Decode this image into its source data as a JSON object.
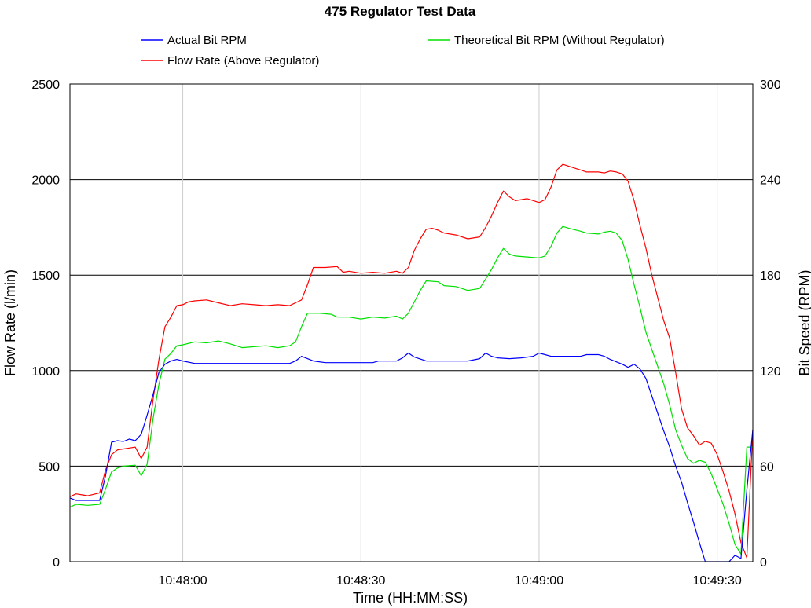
{
  "chart_data": {
    "type": "line",
    "title": "475 Regulator Test Data",
    "xlabel": "Time (HH:MM:SS)",
    "ylabel_left": "Flow Rate (l/min)",
    "ylabel_right": "Bit Speed (RPM)",
    "x_unit": "HH:MM:SS",
    "xlim": [
      "10:47:41",
      "10:49:36"
    ],
    "x_ticks": [
      "10:48:00",
      "10:48:30",
      "10:49:00",
      "10:49:30"
    ],
    "ylim_left": [
      0,
      2500
    ],
    "yticks_left": [
      0,
      500,
      1000,
      1500,
      2000,
      2500
    ],
    "ylim_right": [
      0,
      300
    ],
    "yticks_right": [
      0,
      60,
      120,
      180,
      240,
      300
    ],
    "grid": {
      "horizontal": true,
      "vertical": true
    },
    "legend": {
      "placement": "top",
      "entries": [
        {
          "name": "Actual Bit RPM",
          "color": "#0000ff"
        },
        {
          "name": "Theoretical Bit RPM (Without Regulator)",
          "color": "#00e000"
        },
        {
          "name": "Flow Rate (Above Regulator)",
          "color": "#ff0000"
        }
      ]
    },
    "series": [
      {
        "name": "Flow Rate (Above Regulator)",
        "axis": "left",
        "color": "#ff0000",
        "points": [
          [
            "10:47:41",
            340
          ],
          [
            "10:47:42",
            355
          ],
          [
            "10:47:43",
            350
          ],
          [
            "10:47:44",
            345
          ],
          [
            "10:47:46",
            360
          ],
          [
            "10:47:47",
            480
          ],
          [
            "10:47:48",
            560
          ],
          [
            "10:47:49",
            585
          ],
          [
            "10:47:50",
            590
          ],
          [
            "10:47:51",
            595
          ],
          [
            "10:47:52",
            600
          ],
          [
            "10:47:53",
            540
          ],
          [
            "10:47:54",
            600
          ],
          [
            "10:47:55",
            850
          ],
          [
            "10:47:56",
            1060
          ],
          [
            "10:47:57",
            1230
          ],
          [
            "10:47:58",
            1280
          ],
          [
            "10:47:59",
            1340
          ],
          [
            "10:48:00",
            1345
          ],
          [
            "10:48:01",
            1360
          ],
          [
            "10:48:02",
            1365
          ],
          [
            "10:48:04",
            1370
          ],
          [
            "10:48:06",
            1355
          ],
          [
            "10:48:08",
            1340
          ],
          [
            "10:48:10",
            1350
          ],
          [
            "10:48:12",
            1345
          ],
          [
            "10:48:14",
            1340
          ],
          [
            "10:48:16",
            1345
          ],
          [
            "10:48:18",
            1340
          ],
          [
            "10:48:20",
            1370
          ],
          [
            "10:48:21",
            1450
          ],
          [
            "10:48:22",
            1540
          ],
          [
            "10:48:24",
            1540
          ],
          [
            "10:48:26",
            1545
          ],
          [
            "10:48:27",
            1515
          ],
          [
            "10:48:28",
            1520
          ],
          [
            "10:48:30",
            1510
          ],
          [
            "10:48:32",
            1515
          ],
          [
            "10:48:34",
            1510
          ],
          [
            "10:48:36",
            1520
          ],
          [
            "10:48:37",
            1510
          ],
          [
            "10:48:38",
            1540
          ],
          [
            "10:48:39",
            1630
          ],
          [
            "10:48:40",
            1690
          ],
          [
            "10:48:41",
            1740
          ],
          [
            "10:48:42",
            1745
          ],
          [
            "10:48:43",
            1735
          ],
          [
            "10:48:44",
            1720
          ],
          [
            "10:48:46",
            1710
          ],
          [
            "10:48:48",
            1690
          ],
          [
            "10:48:50",
            1700
          ],
          [
            "10:48:51",
            1750
          ],
          [
            "10:48:52",
            1810
          ],
          [
            "10:48:53",
            1880
          ],
          [
            "10:48:54",
            1940
          ],
          [
            "10:48:55",
            1910
          ],
          [
            "10:48:56",
            1890
          ],
          [
            "10:48:58",
            1900
          ],
          [
            "10:49:00",
            1880
          ],
          [
            "10:49:01",
            1895
          ],
          [
            "10:49:02",
            1960
          ],
          [
            "10:49:03",
            2050
          ],
          [
            "10:49:04",
            2080
          ],
          [
            "10:49:05",
            2070
          ],
          [
            "10:49:07",
            2050
          ],
          [
            "10:49:08",
            2040
          ],
          [
            "10:49:10",
            2040
          ],
          [
            "10:49:11",
            2035
          ],
          [
            "10:49:12",
            2045
          ],
          [
            "10:49:13",
            2040
          ],
          [
            "10:49:14",
            2030
          ],
          [
            "10:49:15",
            1990
          ],
          [
            "10:49:16",
            1890
          ],
          [
            "10:49:17",
            1760
          ],
          [
            "10:49:18",
            1640
          ],
          [
            "10:49:19",
            1500
          ],
          [
            "10:49:20",
            1380
          ],
          [
            "10:49:21",
            1260
          ],
          [
            "10:49:22",
            1170
          ],
          [
            "10:49:23",
            990
          ],
          [
            "10:49:24",
            800
          ],
          [
            "10:49:25",
            700
          ],
          [
            "10:49:26",
            660
          ],
          [
            "10:49:27",
            610
          ],
          [
            "10:49:28",
            630
          ],
          [
            "10:49:29",
            620
          ],
          [
            "10:49:30",
            560
          ],
          [
            "10:49:31",
            470
          ],
          [
            "10:49:32",
            370
          ],
          [
            "10:49:33",
            250
          ],
          [
            "10:49:34",
            100
          ],
          [
            "10:49:35",
            20
          ],
          [
            "10:49:36",
            690
          ]
        ]
      },
      {
        "name": "Theoretical Bit RPM (Without Regulator)",
        "axis": "left",
        "color": "#00e000",
        "points": [
          [
            "10:47:41",
            285
          ],
          [
            "10:47:42",
            300
          ],
          [
            "10:47:44",
            295
          ],
          [
            "10:47:46",
            300
          ],
          [
            "10:47:47",
            380
          ],
          [
            "10:47:48",
            470
          ],
          [
            "10:47:49",
            490
          ],
          [
            "10:47:50",
            500
          ],
          [
            "10:47:52",
            505
          ],
          [
            "10:47:53",
            450
          ],
          [
            "10:47:54",
            510
          ],
          [
            "10:47:55",
            750
          ],
          [
            "10:47:56",
            930
          ],
          [
            "10:47:57",
            1060
          ],
          [
            "10:47:58",
            1090
          ],
          [
            "10:47:59",
            1130
          ],
          [
            "10:48:00",
            1135
          ],
          [
            "10:48:02",
            1150
          ],
          [
            "10:48:04",
            1145
          ],
          [
            "10:48:06",
            1155
          ],
          [
            "10:48:08",
            1140
          ],
          [
            "10:48:10",
            1120
          ],
          [
            "10:48:12",
            1125
          ],
          [
            "10:48:14",
            1130
          ],
          [
            "10:48:16",
            1120
          ],
          [
            "10:48:18",
            1130
          ],
          [
            "10:48:19",
            1150
          ],
          [
            "10:48:20",
            1230
          ],
          [
            "10:48:21",
            1300
          ],
          [
            "10:48:23",
            1300
          ],
          [
            "10:48:25",
            1295
          ],
          [
            "10:48:26",
            1280
          ],
          [
            "10:48:28",
            1280
          ],
          [
            "10:48:30",
            1270
          ],
          [
            "10:48:32",
            1280
          ],
          [
            "10:48:34",
            1275
          ],
          [
            "10:48:36",
            1285
          ],
          [
            "10:48:37",
            1270
          ],
          [
            "10:48:38",
            1300
          ],
          [
            "10:48:39",
            1360
          ],
          [
            "10:48:40",
            1420
          ],
          [
            "10:48:41",
            1470
          ],
          [
            "10:48:43",
            1465
          ],
          [
            "10:48:44",
            1445
          ],
          [
            "10:48:46",
            1440
          ],
          [
            "10:48:48",
            1420
          ],
          [
            "10:48:50",
            1430
          ],
          [
            "10:48:51",
            1480
          ],
          [
            "10:48:52",
            1530
          ],
          [
            "10:48:53",
            1590
          ],
          [
            "10:48:54",
            1640
          ],
          [
            "10:48:55",
            1610
          ],
          [
            "10:48:56",
            1600
          ],
          [
            "10:48:58",
            1595
          ],
          [
            "10:49:00",
            1590
          ],
          [
            "10:49:01",
            1600
          ],
          [
            "10:49:02",
            1650
          ],
          [
            "10:49:03",
            1720
          ],
          [
            "10:49:04",
            1755
          ],
          [
            "10:49:05",
            1745
          ],
          [
            "10:49:07",
            1730
          ],
          [
            "10:49:08",
            1720
          ],
          [
            "10:49:10",
            1715
          ],
          [
            "10:49:11",
            1725
          ],
          [
            "10:49:12",
            1730
          ],
          [
            "10:49:13",
            1720
          ],
          [
            "10:49:14",
            1680
          ],
          [
            "10:49:15",
            1580
          ],
          [
            "10:49:16",
            1450
          ],
          [
            "10:49:17",
            1330
          ],
          [
            "10:49:18",
            1200
          ],
          [
            "10:49:19",
            1110
          ],
          [
            "10:49:20",
            1020
          ],
          [
            "10:49:21",
            930
          ],
          [
            "10:49:22",
            820
          ],
          [
            "10:49:23",
            690
          ],
          [
            "10:49:24",
            610
          ],
          [
            "10:49:25",
            540
          ],
          [
            "10:49:26",
            515
          ],
          [
            "10:49:27",
            530
          ],
          [
            "10:49:28",
            520
          ],
          [
            "10:49:29",
            460
          ],
          [
            "10:49:30",
            380
          ],
          [
            "10:49:31",
            300
          ],
          [
            "10:49:32",
            200
          ],
          [
            "10:49:33",
            90
          ],
          [
            "10:49:34",
            40
          ],
          [
            "10:49:35",
            600
          ],
          [
            "10:49:36",
            600
          ]
        ]
      },
      {
        "name": "Actual Bit RPM",
        "axis": "right",
        "color": "#0000ff",
        "points": [
          [
            "10:47:41",
            40
          ],
          [
            "10:47:42",
            38.5
          ],
          [
            "10:47:44",
            38.5
          ],
          [
            "10:47:46",
            38.5
          ],
          [
            "10:47:47",
            54
          ],
          [
            "10:47:48",
            75
          ],
          [
            "10:47:49",
            76
          ],
          [
            "10:47:50",
            75.5
          ],
          [
            "10:47:51",
            77
          ],
          [
            "10:47:52",
            76
          ],
          [
            "10:47:53",
            80
          ],
          [
            "10:47:54",
            92
          ],
          [
            "10:47:55",
            105
          ],
          [
            "10:47:56",
            119
          ],
          [
            "10:47:57",
            124
          ],
          [
            "10:47:58",
            126
          ],
          [
            "10:47:59",
            127
          ],
          [
            "10:48:00",
            126
          ],
          [
            "10:48:02",
            124.5
          ],
          [
            "10:48:06",
            124.5
          ],
          [
            "10:48:10",
            124.5
          ],
          [
            "10:48:14",
            124.5
          ],
          [
            "10:48:18",
            124.5
          ],
          [
            "10:48:19",
            126
          ],
          [
            "10:48:20",
            129
          ],
          [
            "10:48:21",
            127.5
          ],
          [
            "10:48:22",
            126
          ],
          [
            "10:48:24",
            125
          ],
          [
            "10:48:28",
            125
          ],
          [
            "10:48:32",
            125
          ],
          [
            "10:48:33",
            126
          ],
          [
            "10:48:36",
            126
          ],
          [
            "10:48:37",
            128
          ],
          [
            "10:48:38",
            131
          ],
          [
            "10:48:39",
            128.5
          ],
          [
            "10:48:41",
            126
          ],
          [
            "10:48:44",
            126
          ],
          [
            "10:48:48",
            126
          ],
          [
            "10:48:50",
            127.5
          ],
          [
            "10:48:51",
            131
          ],
          [
            "10:48:52",
            129
          ],
          [
            "10:48:53",
            128
          ],
          [
            "10:48:55",
            127.5
          ],
          [
            "10:48:57",
            128
          ],
          [
            "10:48:59",
            129
          ],
          [
            "10:49:00",
            131
          ],
          [
            "10:49:01",
            130
          ],
          [
            "10:49:02",
            129
          ],
          [
            "10:49:04",
            129
          ],
          [
            "10:49:07",
            129
          ],
          [
            "10:49:08",
            130
          ],
          [
            "10:49:10",
            130
          ],
          [
            "10:49:11",
            129
          ],
          [
            "10:49:12",
            127
          ],
          [
            "10:49:14",
            124
          ],
          [
            "10:49:15",
            122
          ],
          [
            "10:49:16",
            124
          ],
          [
            "10:49:17",
            121
          ],
          [
            "10:49:18",
            115
          ],
          [
            "10:49:19",
            104
          ],
          [
            "10:49:20",
            93
          ],
          [
            "10:49:21",
            82
          ],
          [
            "10:49:22",
            72
          ],
          [
            "10:49:23",
            60
          ],
          [
            "10:49:24",
            50
          ],
          [
            "10:49:25",
            37
          ],
          [
            "10:49:26",
            25
          ],
          [
            "10:49:27",
            12
          ],
          [
            "10:49:28",
            0
          ],
          [
            "10:49:32",
            0
          ],
          [
            "10:49:33",
            4
          ],
          [
            "10:49:34",
            2
          ],
          [
            "10:49:35",
            45
          ],
          [
            "10:49:36",
            83
          ]
        ]
      }
    ]
  }
}
